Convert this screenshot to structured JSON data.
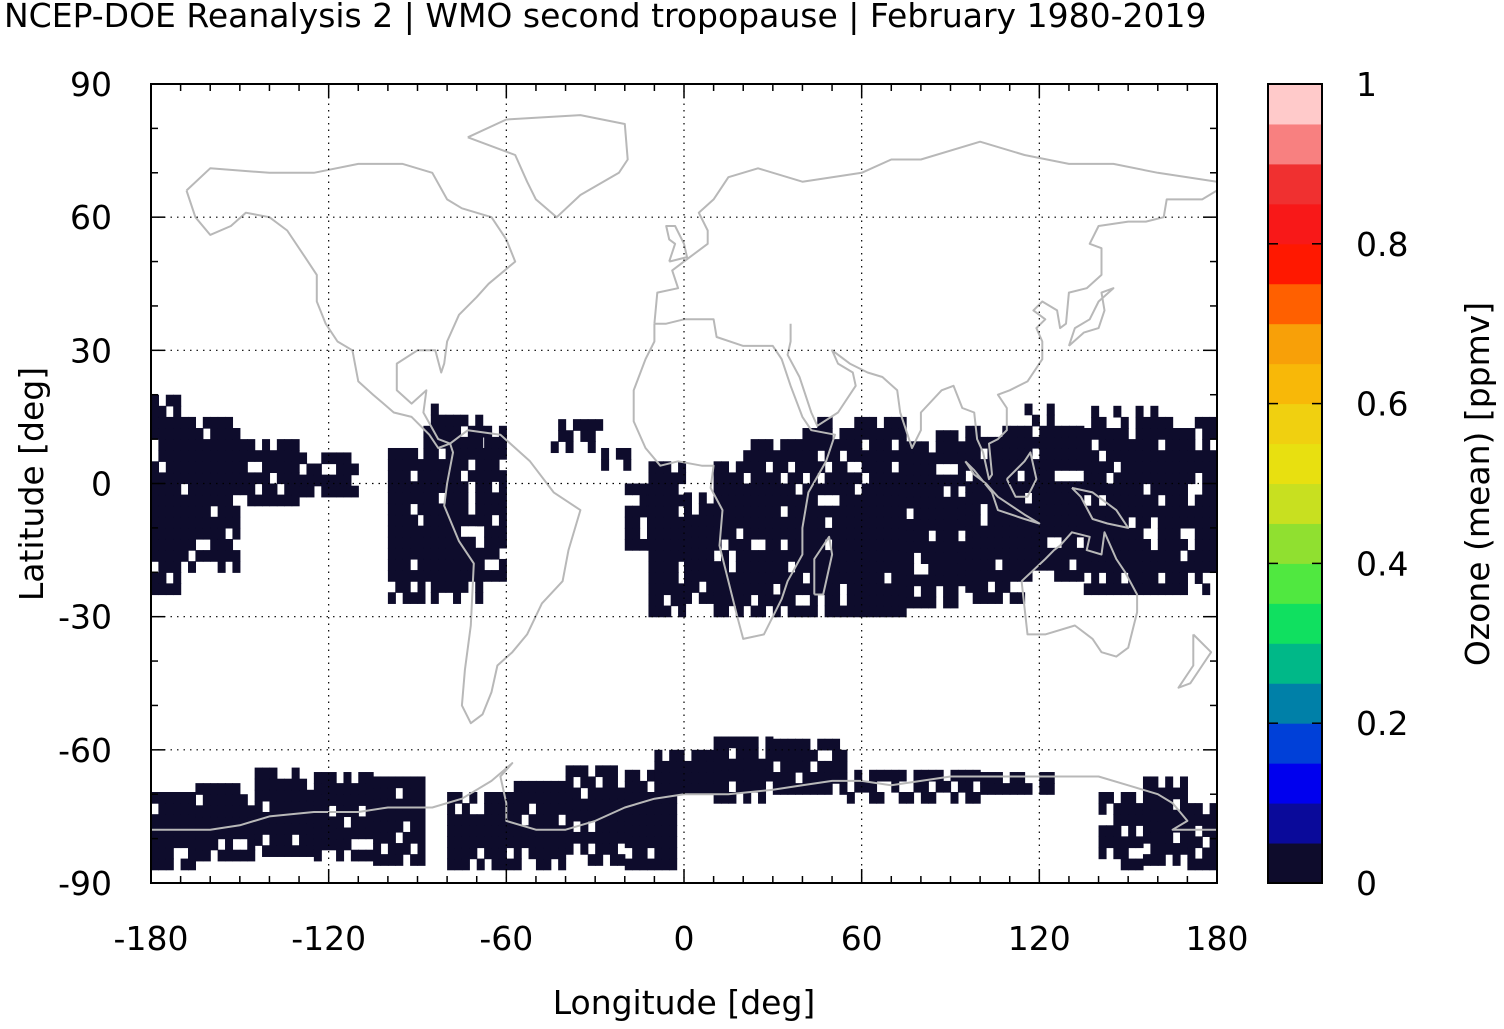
{
  "title": "NCEP-DOE Reanalysis 2 | WMO second tropopause | February 1980-2019",
  "chart_data": {
    "type": "heatmap",
    "xlabel": "Longitude [deg]",
    "ylabel": "Latitude [deg]",
    "xlim": [
      -180,
      180
    ],
    "ylim": [
      -90,
      90
    ],
    "xticks": [
      "-180",
      "-120",
      "-60",
      "0",
      "60",
      "120",
      "180"
    ],
    "yticks": [
      "90",
      "60",
      "30",
      "0",
      "-30",
      "-60",
      "-90"
    ],
    "grid": true,
    "colorbar": {
      "label": "Ozone (mean) [ppmv]",
      "range": [
        0,
        1
      ],
      "ticks": [
        "0",
        "0.2",
        "0.4",
        "0.6",
        "0.8",
        "1"
      ],
      "colors": [
        "#0e0c2c",
        "#0a0a9a",
        "#0000ee",
        "#0040d8",
        "#0080a8",
        "#00b888",
        "#10e060",
        "#50e840",
        "#90e030",
        "#c8e020",
        "#e8e010",
        "#f0d010",
        "#f8b808",
        "#f8a008",
        "#ff6000",
        "#ff1800",
        "#f81818",
        "#f03030",
        "#f88080",
        "#ffcaca"
      ]
    },
    "field_description": "Near-zero mean ozone at second tropopause over tropical and Antarctic regions; white elsewhere (no data)",
    "filled_regions": [
      {
        "lon": [
          -180,
          -100
        ],
        "lat": [
          -25,
          18
        ],
        "value": 0.0
      },
      {
        "lon": [
          -100,
          -58
        ],
        "lat": [
          -27,
          17
        ],
        "value": 0.0
      },
      {
        "lon": [
          -40,
          180
        ],
        "lat": [
          -30,
          17
        ],
        "value": 0.0
      },
      {
        "lon": [
          -180,
          -85
        ],
        "lat": [
          -87,
          -65
        ],
        "value": 0.0
      },
      {
        "lon": [
          -80,
          -3
        ],
        "lat": [
          -87,
          -62
        ],
        "value": 0.0
      },
      {
        "lon": [
          -50,
          60
        ],
        "lat": [
          -70,
          -57
        ],
        "value": 0.0
      },
      {
        "lon": [
          60,
          120
        ],
        "lat": [
          -72,
          -65
        ],
        "value": 0.0
      },
      {
        "lon": [
          140,
          180
        ],
        "lat": [
          -87,
          -65
        ],
        "value": 0.0
      }
    ],
    "coastline_color": "#b8b8b8",
    "fill_color": "#0e0c2c"
  }
}
